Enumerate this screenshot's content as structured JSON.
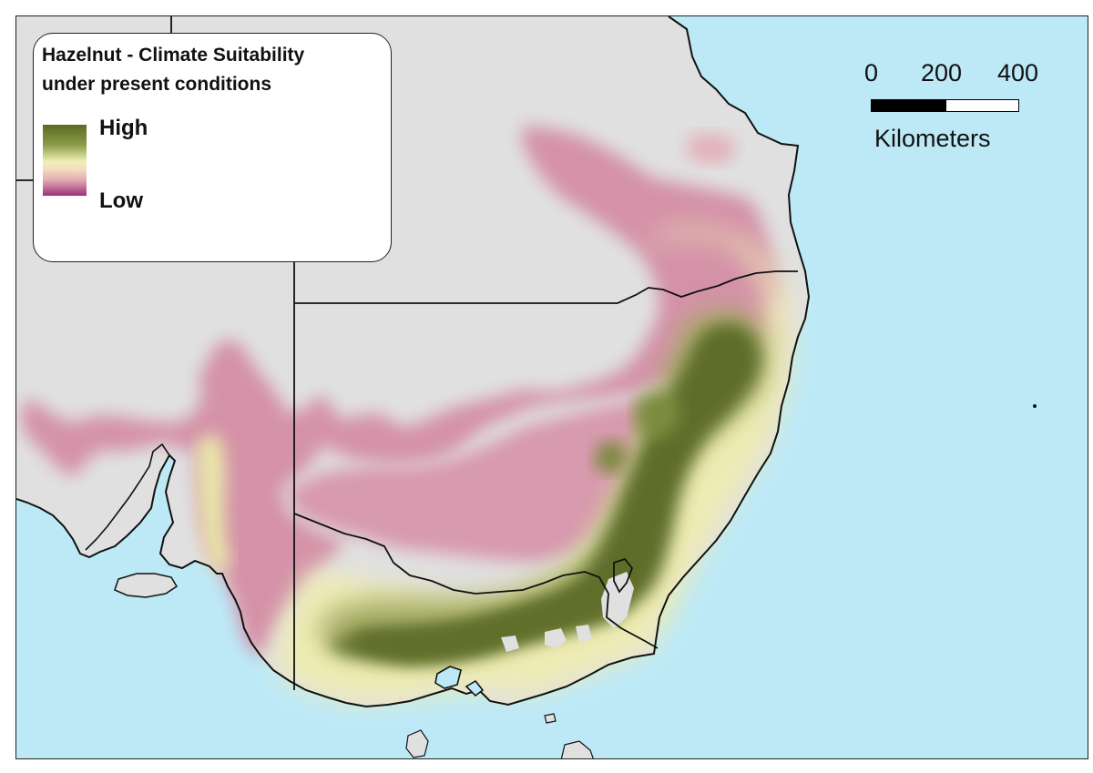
{
  "legend": {
    "title_line1": "Hazelnut - Climate Suitability",
    "title_line2": "under present conditions",
    "high_label": "High",
    "low_label": "Low",
    "ramp_colors": [
      "#5b6b23",
      "#8a9a47",
      "#f2efb6",
      "#f3d9c0",
      "#e2aab3",
      "#9d2f77"
    ]
  },
  "scale_bar": {
    "ticks": [
      "0",
      "200",
      "400"
    ],
    "unit": "Kilometers"
  },
  "map": {
    "ocean_color": "#bde9f7",
    "land_color": "#e0e0e0",
    "boundary_color": "#111111",
    "suitability_low_color": "#cf8aa0",
    "suitability_mid_color": "#f1efb8",
    "suitability_high_color": "#5d6c26"
  }
}
